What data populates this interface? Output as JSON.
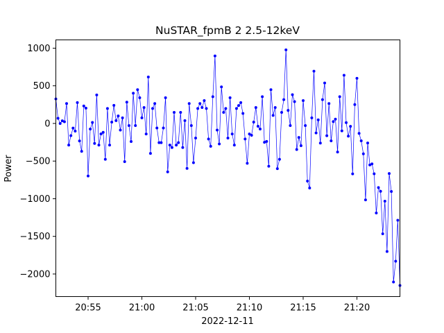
{
  "chart_data": {
    "type": "line",
    "title": "NuSTAR_fpmB 2 2.5-12keV",
    "xlabel": "2022-12-11",
    "ylabel": "Power",
    "x_type": "time",
    "x_range": [
      "20:52",
      "21:24"
    ],
    "x_ticks": [
      "20:55",
      "21:00",
      "21:05",
      "21:10",
      "21:15",
      "21:20"
    ],
    "y_range": [
      -2300,
      1110
    ],
    "y_ticks": [
      1000,
      500,
      0,
      -500,
      -1000,
      -1500,
      -2000
    ],
    "y_tick_labels": [
      "1000",
      "500",
      "0",
      "−500",
      "−1000",
      "−1500",
      "−2000"
    ],
    "grid": false,
    "legend": "none",
    "color": "#0000ff",
    "marker": "circle",
    "values": [
      325,
      69,
      0,
      35,
      22,
      264,
      -287,
      -162,
      -62,
      -102,
      277,
      -232,
      -370,
      232,
      203,
      -698,
      -74,
      13,
      -266,
      379,
      -287,
      -139,
      -118,
      -476,
      199,
      -287,
      18,
      240,
      37,
      100,
      -88,
      74,
      -508,
      283,
      -28,
      -240,
      402,
      -28,
      449,
      342,
      74,
      212,
      -140,
      617,
      -398,
      199,
      264,
      -60,
      -255,
      -255,
      -60,
      342,
      -643,
      -287,
      -320,
      147,
      -287,
      -255,
      147,
      -320,
      37,
      -597,
      264,
      -28,
      -521,
      -194,
      199,
      264,
      212,
      303,
      199,
      -207,
      -304,
      355,
      897,
      -88,
      -272,
      486,
      147,
      199,
      -194,
      342,
      -140,
      -287,
      199,
      238,
      277,
      133,
      -207,
      -529,
      -140,
      -157,
      18,
      212,
      -38,
      -74,
      355,
      -251,
      -239,
      -569,
      449,
      107,
      212,
      -601,
      -476,
      147,
      316,
      978,
      173,
      -28,
      382,
      290,
      -346,
      -186,
      -295,
      303,
      -28,
      -766,
      -858,
      74,
      694,
      -126,
      48,
      -261,
      316,
      537,
      -163,
      264,
      -231,
      25,
      57,
      -380,
      355,
      -98,
      640,
      11,
      -169,
      -39,
      -670,
      251,
      600,
      -132,
      -231,
      -404,
      -1016,
      -260,
      -551,
      -537,
      -669,
      -1190,
      -852,
      -902,
      -1466,
      -1033,
      -1701,
      -665,
      -904,
      -2106,
      -1830,
      -1286,
      -2152
    ]
  }
}
